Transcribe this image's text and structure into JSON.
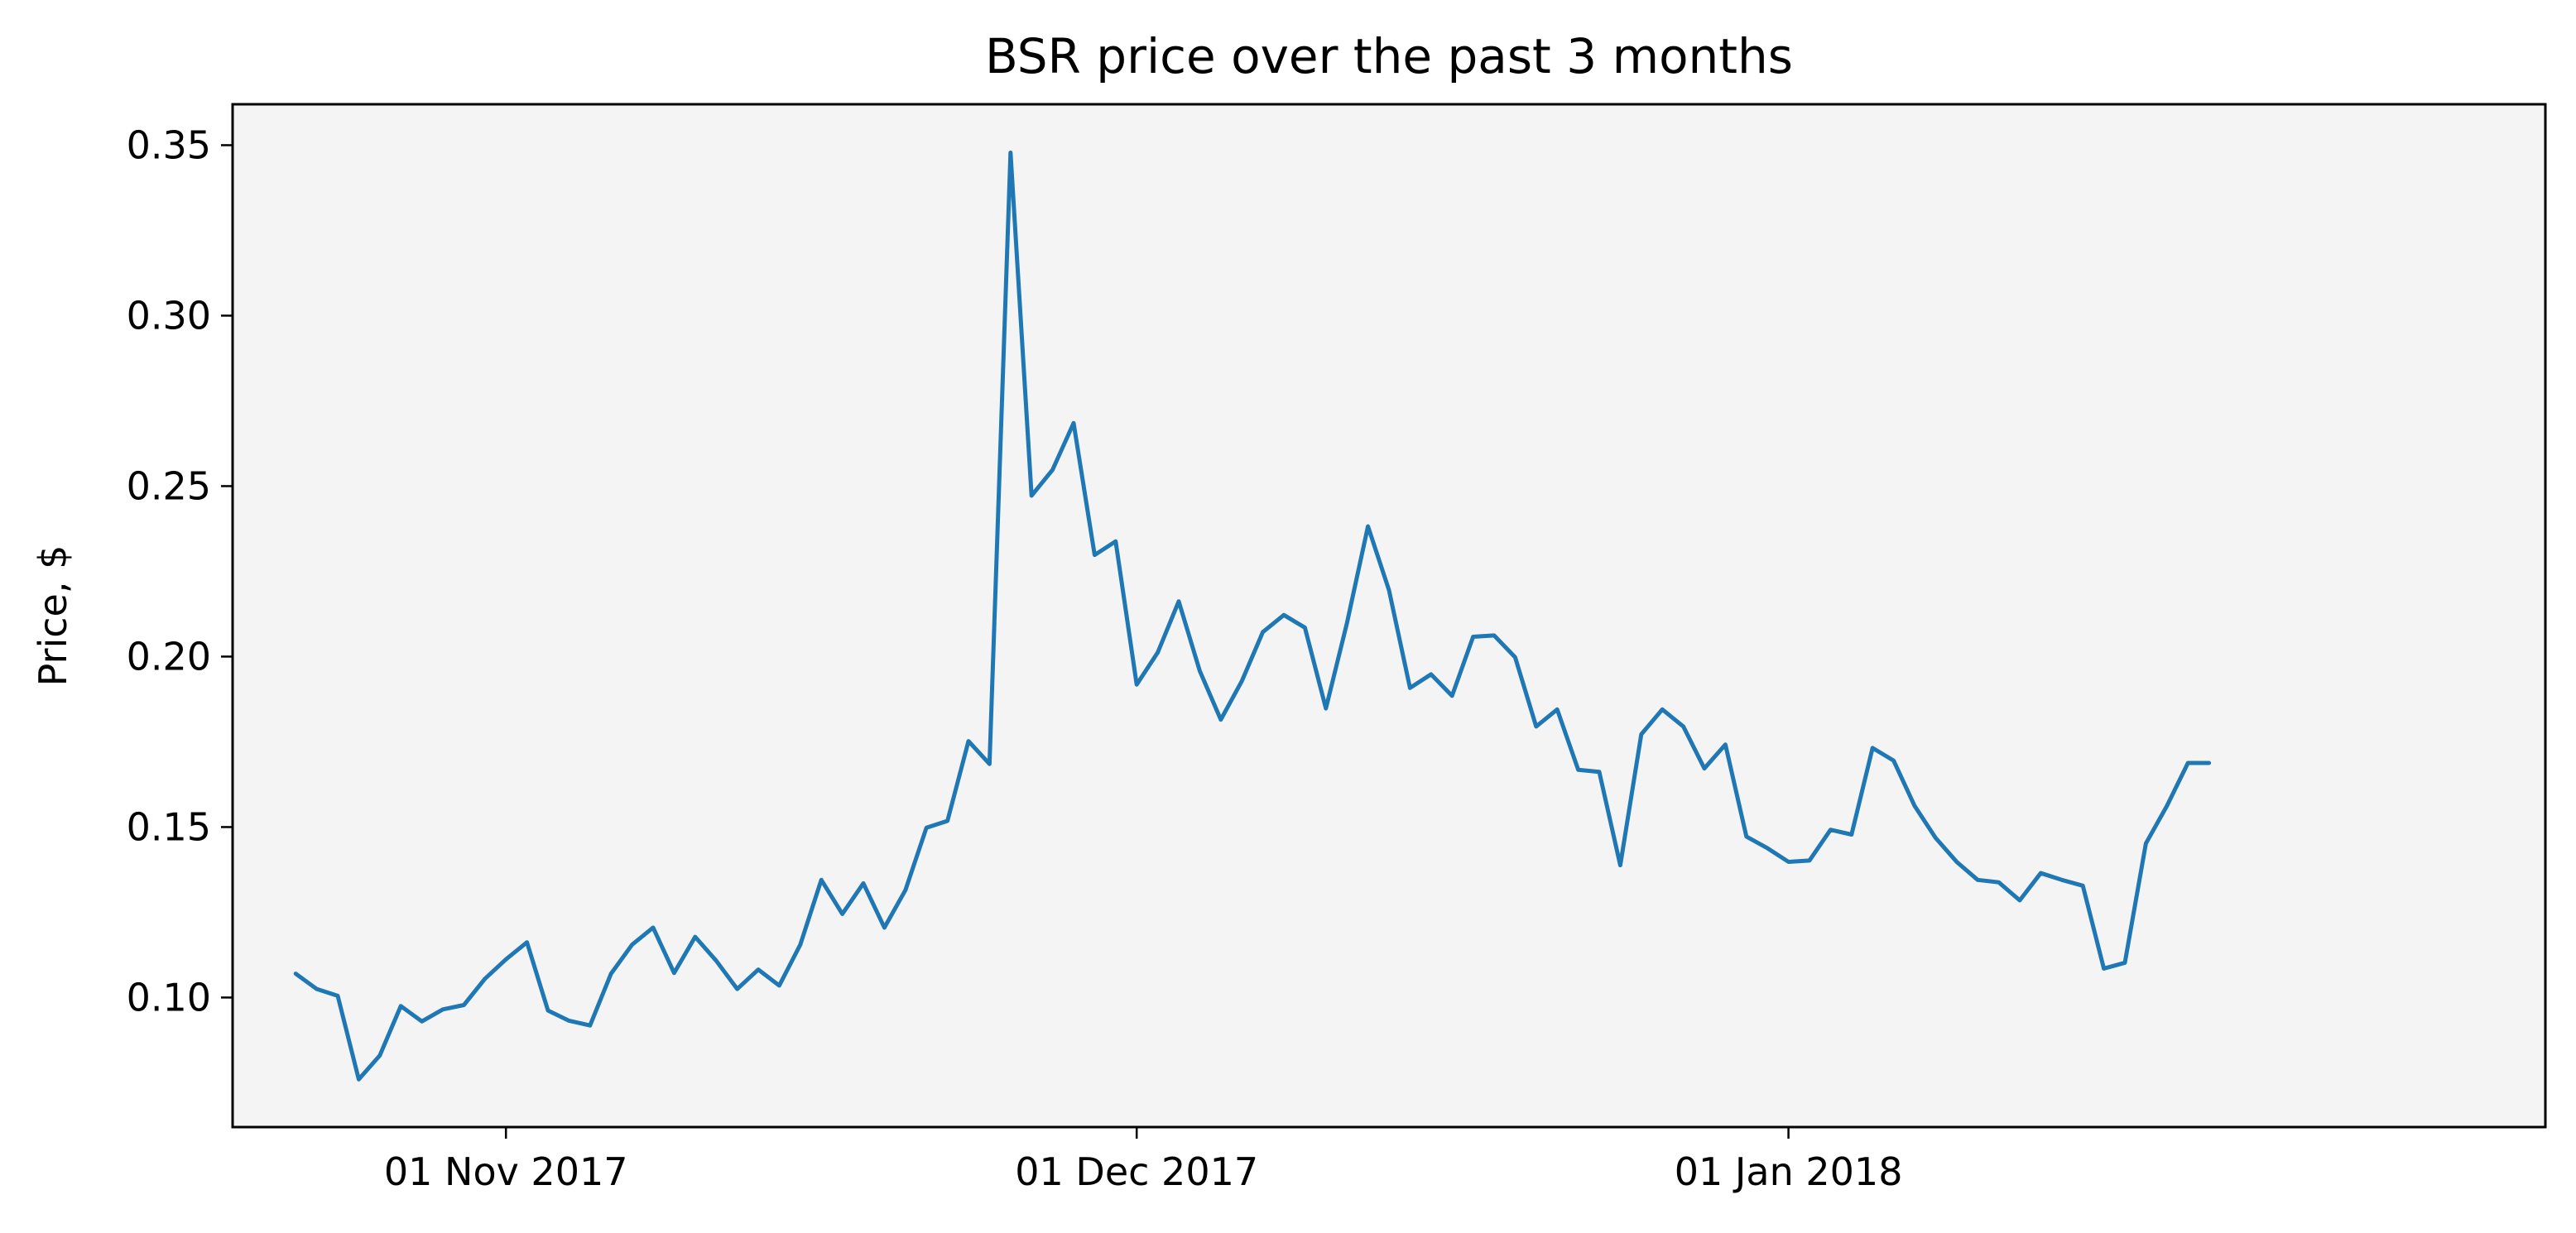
{
  "chart_data": {
    "type": "line",
    "title": "BSR price over the past 3 months",
    "xlabel": "",
    "ylabel": "Price, $",
    "x_axis": {
      "scale": "date",
      "range": [
        "2017-10-19",
        "2018-02-06"
      ],
      "ticks": [
        {
          "value": "2017-11-01",
          "label": "01 Nov 2017"
        },
        {
          "value": "2017-12-01",
          "label": "01 Dec 2017"
        },
        {
          "value": "2018-01-01",
          "label": "01 Jan 2018"
        }
      ]
    },
    "y_axis": {
      "range": [
        0.062,
        0.362
      ],
      "ticks": [
        {
          "value": 0.1,
          "label": "0.10"
        },
        {
          "value": 0.15,
          "label": "0.15"
        },
        {
          "value": 0.2,
          "label": "0.20"
        },
        {
          "value": 0.25,
          "label": "0.25"
        },
        {
          "value": 0.3,
          "label": "0.30"
        },
        {
          "value": 0.35,
          "label": "0.35"
        }
      ]
    },
    "grid": false,
    "legend": "none",
    "colors": {
      "line": "#1f77b4",
      "plot_background": "#f4f4f4",
      "axes": "#000000"
    },
    "series": [
      {
        "x": [
          "2017-10-22",
          "2017-10-23",
          "2017-10-24",
          "2017-10-25",
          "2017-10-26",
          "2017-10-27",
          "2017-10-28",
          "2017-10-29",
          "2017-10-30",
          "2017-10-31",
          "2017-11-01",
          "2017-11-02",
          "2017-11-03",
          "2017-11-04",
          "2017-11-05",
          "2017-11-06",
          "2017-11-07",
          "2017-11-08",
          "2017-11-09",
          "2017-11-10",
          "2017-11-11",
          "2017-11-12",
          "2017-11-13",
          "2017-11-14",
          "2017-11-15",
          "2017-11-16",
          "2017-11-17",
          "2017-11-18",
          "2017-11-19",
          "2017-11-20",
          "2017-11-21",
          "2017-11-22",
          "2017-11-23",
          "2017-11-24",
          "2017-11-25",
          "2017-11-26",
          "2017-11-27",
          "2017-11-28",
          "2017-11-29",
          "2017-11-30",
          "2017-12-01",
          "2017-12-02",
          "2017-12-03",
          "2017-12-04",
          "2017-12-05",
          "2017-12-06",
          "2017-12-07",
          "2017-12-08",
          "2017-12-09",
          "2017-12-10",
          "2017-12-11",
          "2017-12-12",
          "2017-12-13",
          "2017-12-14",
          "2017-12-15",
          "2017-12-16",
          "2017-12-17",
          "2017-12-18",
          "2017-12-19",
          "2017-12-20",
          "2017-12-21",
          "2017-12-22",
          "2017-12-23",
          "2017-12-24",
          "2017-12-25",
          "2017-12-26",
          "2017-12-27",
          "2017-12-28",
          "2017-12-29",
          "2017-12-30",
          "2017-12-31",
          "2018-01-01",
          "2018-01-02",
          "2018-01-03",
          "2018-01-04",
          "2018-01-05",
          "2018-01-06",
          "2018-01-07",
          "2018-01-08",
          "2018-01-09",
          "2018-01-10",
          "2018-01-11",
          "2018-01-12",
          "2018-01-13",
          "2018-01-14",
          "2018-01-15",
          "2018-01-16",
          "2018-01-17",
          "2018-01-18",
          "2018-01-19",
          "2018-01-20",
          "2018-01-21"
        ],
        "y": [
          0.107,
          0.1025,
          0.1005,
          0.076,
          0.083,
          0.0975,
          0.093,
          0.0965,
          0.0978,
          0.1055,
          0.1112,
          0.1162,
          0.0962,
          0.0932,
          0.0918,
          0.107,
          0.1155,
          0.1205,
          0.1072,
          0.1178,
          0.1108,
          0.1025,
          0.1082,
          0.1035,
          0.1155,
          0.1345,
          0.1245,
          0.1335,
          0.1205,
          0.1315,
          0.1498,
          0.1518,
          0.1752,
          0.1685,
          0.3478,
          0.2472,
          0.2548,
          0.2685,
          0.2298,
          0.2338,
          0.1918,
          0.2012,
          0.2162,
          0.1958,
          0.1815,
          0.1928,
          0.2072,
          0.2122,
          0.2085,
          0.1848,
          0.2098,
          0.2382,
          0.2195,
          0.1908,
          0.1948,
          0.1885,
          0.2058,
          0.2062,
          0.1998,
          0.1795,
          0.1845,
          0.1668,
          0.1662,
          0.1388,
          0.1772,
          0.1845,
          0.1795,
          0.1672,
          0.1742,
          0.1472,
          0.1438,
          0.1398,
          0.1402,
          0.1492,
          0.1478,
          0.1732,
          0.1695,
          0.1562,
          0.1468,
          0.1398,
          0.1345,
          0.1338,
          0.1285,
          0.1365,
          0.1345,
          0.1328,
          0.1085,
          0.1102,
          0.1452,
          0.1562,
          0.1688,
          0.1688
        ]
      }
    ]
  }
}
